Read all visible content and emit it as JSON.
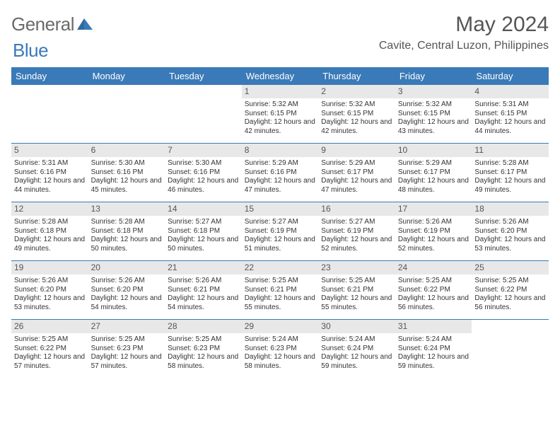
{
  "logo": {
    "text_gray": "General",
    "text_blue": "Blue"
  },
  "title": "May 2024",
  "location": "Cavite, Central Luzon, Philippines",
  "colors": {
    "header_bg": "#3a7ab8",
    "header_text": "#ffffff",
    "daynum_bg": "#e8e8e8",
    "text": "#333333",
    "title_text": "#555555",
    "rule": "#3a7ab8"
  },
  "typography": {
    "title_fontsize": 30,
    "location_fontsize": 16,
    "dayheader_fontsize": 13,
    "cell_fontsize": 10
  },
  "day_names": [
    "Sunday",
    "Monday",
    "Tuesday",
    "Wednesday",
    "Thursday",
    "Friday",
    "Saturday"
  ],
  "weeks": [
    [
      null,
      null,
      null,
      {
        "n": "1",
        "sr": "5:32 AM",
        "ss": "6:15 PM",
        "dl": "12 hours and 42 minutes."
      },
      {
        "n": "2",
        "sr": "5:32 AM",
        "ss": "6:15 PM",
        "dl": "12 hours and 42 minutes."
      },
      {
        "n": "3",
        "sr": "5:32 AM",
        "ss": "6:15 PM",
        "dl": "12 hours and 43 minutes."
      },
      {
        "n": "4",
        "sr": "5:31 AM",
        "ss": "6:15 PM",
        "dl": "12 hours and 44 minutes."
      }
    ],
    [
      {
        "n": "5",
        "sr": "5:31 AM",
        "ss": "6:16 PM",
        "dl": "12 hours and 44 minutes."
      },
      {
        "n": "6",
        "sr": "5:30 AM",
        "ss": "6:16 PM",
        "dl": "12 hours and 45 minutes."
      },
      {
        "n": "7",
        "sr": "5:30 AM",
        "ss": "6:16 PM",
        "dl": "12 hours and 46 minutes."
      },
      {
        "n": "8",
        "sr": "5:29 AM",
        "ss": "6:16 PM",
        "dl": "12 hours and 47 minutes."
      },
      {
        "n": "9",
        "sr": "5:29 AM",
        "ss": "6:17 PM",
        "dl": "12 hours and 47 minutes."
      },
      {
        "n": "10",
        "sr": "5:29 AM",
        "ss": "6:17 PM",
        "dl": "12 hours and 48 minutes."
      },
      {
        "n": "11",
        "sr": "5:28 AM",
        "ss": "6:17 PM",
        "dl": "12 hours and 49 minutes."
      }
    ],
    [
      {
        "n": "12",
        "sr": "5:28 AM",
        "ss": "6:18 PM",
        "dl": "12 hours and 49 minutes."
      },
      {
        "n": "13",
        "sr": "5:28 AM",
        "ss": "6:18 PM",
        "dl": "12 hours and 50 minutes."
      },
      {
        "n": "14",
        "sr": "5:27 AM",
        "ss": "6:18 PM",
        "dl": "12 hours and 50 minutes."
      },
      {
        "n": "15",
        "sr": "5:27 AM",
        "ss": "6:19 PM",
        "dl": "12 hours and 51 minutes."
      },
      {
        "n": "16",
        "sr": "5:27 AM",
        "ss": "6:19 PM",
        "dl": "12 hours and 52 minutes."
      },
      {
        "n": "17",
        "sr": "5:26 AM",
        "ss": "6:19 PM",
        "dl": "12 hours and 52 minutes."
      },
      {
        "n": "18",
        "sr": "5:26 AM",
        "ss": "6:20 PM",
        "dl": "12 hours and 53 minutes."
      }
    ],
    [
      {
        "n": "19",
        "sr": "5:26 AM",
        "ss": "6:20 PM",
        "dl": "12 hours and 53 minutes."
      },
      {
        "n": "20",
        "sr": "5:26 AM",
        "ss": "6:20 PM",
        "dl": "12 hours and 54 minutes."
      },
      {
        "n": "21",
        "sr": "5:26 AM",
        "ss": "6:21 PM",
        "dl": "12 hours and 54 minutes."
      },
      {
        "n": "22",
        "sr": "5:25 AM",
        "ss": "6:21 PM",
        "dl": "12 hours and 55 minutes."
      },
      {
        "n": "23",
        "sr": "5:25 AM",
        "ss": "6:21 PM",
        "dl": "12 hours and 55 minutes."
      },
      {
        "n": "24",
        "sr": "5:25 AM",
        "ss": "6:22 PM",
        "dl": "12 hours and 56 minutes."
      },
      {
        "n": "25",
        "sr": "5:25 AM",
        "ss": "6:22 PM",
        "dl": "12 hours and 56 minutes."
      }
    ],
    [
      {
        "n": "26",
        "sr": "5:25 AM",
        "ss": "6:22 PM",
        "dl": "12 hours and 57 minutes."
      },
      {
        "n": "27",
        "sr": "5:25 AM",
        "ss": "6:23 PM",
        "dl": "12 hours and 57 minutes."
      },
      {
        "n": "28",
        "sr": "5:25 AM",
        "ss": "6:23 PM",
        "dl": "12 hours and 58 minutes."
      },
      {
        "n": "29",
        "sr": "5:24 AM",
        "ss": "6:23 PM",
        "dl": "12 hours and 58 minutes."
      },
      {
        "n": "30",
        "sr": "5:24 AM",
        "ss": "6:24 PM",
        "dl": "12 hours and 59 minutes."
      },
      {
        "n": "31",
        "sr": "5:24 AM",
        "ss": "6:24 PM",
        "dl": "12 hours and 59 minutes."
      },
      null
    ]
  ],
  "labels": {
    "sunrise": "Sunrise:",
    "sunset": "Sunset:",
    "daylight": "Daylight:"
  }
}
